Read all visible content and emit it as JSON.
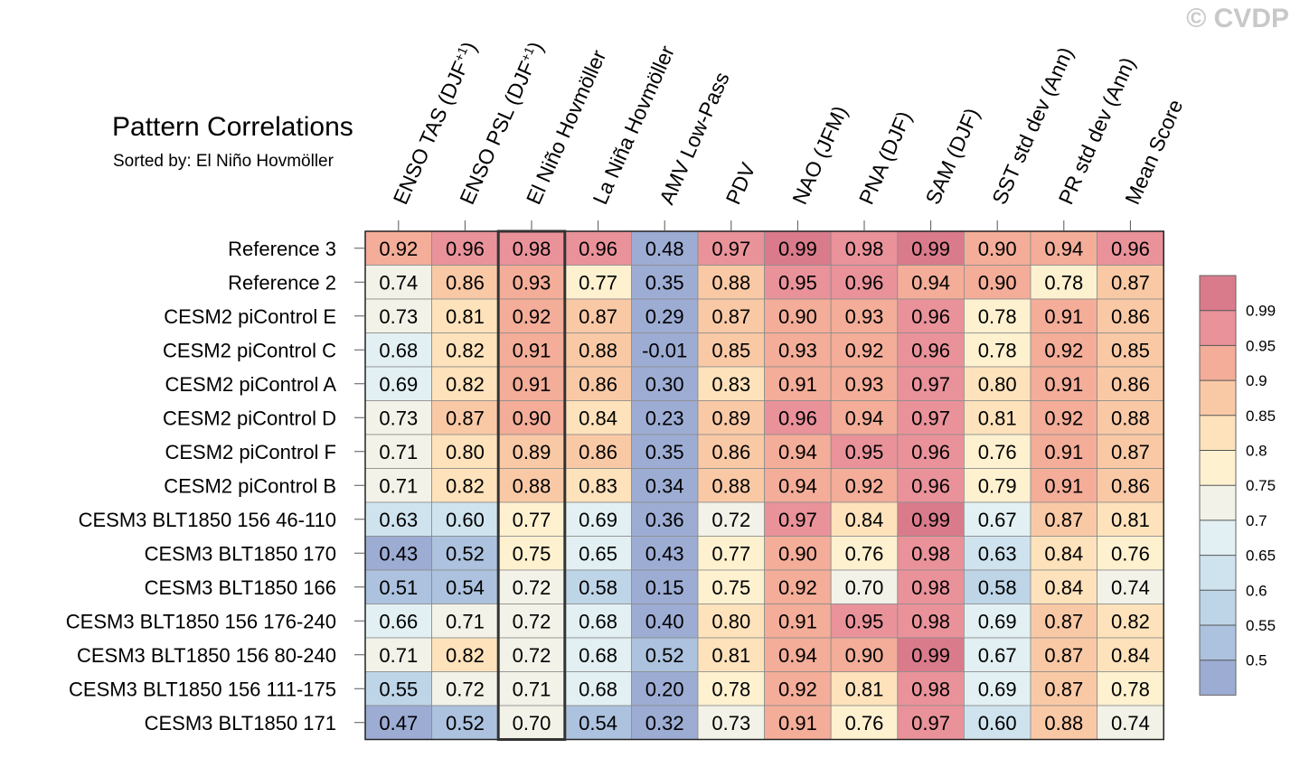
{
  "watermark": "© CVDP",
  "chart_data": {
    "type": "heatmap",
    "title": "Pattern Correlations",
    "subtitle": "Sorted by: El Niño Hovmöller",
    "highlight_column": 2,
    "columns": [
      {
        "text": "ENSO TAS (DJF",
        "sup": "+1",
        "tail": ")"
      },
      {
        "text": "ENSO PSL (DJF",
        "sup": "+1",
        "tail": ")"
      },
      {
        "text": "El Niño Hovmöller",
        "sup": "",
        "tail": ""
      },
      {
        "text": "La Niña Hovmöller",
        "sup": "",
        "tail": ""
      },
      {
        "text": "AMV Low-Pass",
        "sup": "",
        "tail": ""
      },
      {
        "text": "PDV",
        "sup": "",
        "tail": ""
      },
      {
        "text": "NAO (JFM)",
        "sup": "",
        "tail": ""
      },
      {
        "text": "PNA (DJF)",
        "sup": "",
        "tail": ""
      },
      {
        "text": "SAM (DJF)",
        "sup": "",
        "tail": ""
      },
      {
        "text": "SST std dev (Ann)",
        "sup": "",
        "tail": ""
      },
      {
        "text": "PR std dev (Ann)",
        "sup": "",
        "tail": ""
      },
      {
        "text": "Mean Score",
        "sup": "",
        "tail": ""
      }
    ],
    "rows": [
      "Reference 3",
      "Reference 2",
      "CESM2 piControl E",
      "CESM2 piControl C",
      "CESM2 piControl A",
      "CESM2 piControl D",
      "CESM2 piControl F",
      "CESM2 piControl B",
      "CESM3 BLT1850 156 46-110",
      "CESM3 BLT1850 170",
      "CESM3 BLT1850 166",
      "CESM3 BLT1850 156 176-240",
      "CESM3 BLT1850 156 80-240",
      "CESM3 BLT1850 156 111-175",
      "CESM3 BLT1850 171"
    ],
    "values": [
      [
        "0.92",
        "0.96",
        "0.98",
        "0.96",
        "0.48",
        "0.97",
        "0.99",
        "0.98",
        "0.99",
        "0.90",
        "0.94",
        "0.96"
      ],
      [
        "0.74",
        "0.86",
        "0.93",
        "0.77",
        "0.35",
        "0.88",
        "0.95",
        "0.96",
        "0.94",
        "0.90",
        "0.78",
        "0.87"
      ],
      [
        "0.73",
        "0.81",
        "0.92",
        "0.87",
        "0.29",
        "0.87",
        "0.90",
        "0.93",
        "0.96",
        "0.78",
        "0.91",
        "0.86"
      ],
      [
        "0.68",
        "0.82",
        "0.91",
        "0.88",
        "-0.01",
        "0.85",
        "0.93",
        "0.92",
        "0.96",
        "0.78",
        "0.92",
        "0.85"
      ],
      [
        "0.69",
        "0.82",
        "0.91",
        "0.86",
        "0.30",
        "0.83",
        "0.91",
        "0.93",
        "0.97",
        "0.80",
        "0.91",
        "0.86"
      ],
      [
        "0.73",
        "0.87",
        "0.90",
        "0.84",
        "0.23",
        "0.89",
        "0.96",
        "0.94",
        "0.97",
        "0.81",
        "0.92",
        "0.88"
      ],
      [
        "0.71",
        "0.80",
        "0.89",
        "0.86",
        "0.35",
        "0.86",
        "0.94",
        "0.95",
        "0.96",
        "0.76",
        "0.91",
        "0.87"
      ],
      [
        "0.71",
        "0.82",
        "0.88",
        "0.83",
        "0.34",
        "0.88",
        "0.94",
        "0.92",
        "0.96",
        "0.79",
        "0.91",
        "0.86"
      ],
      [
        "0.63",
        "0.60",
        "0.77",
        "0.69",
        "0.36",
        "0.72",
        "0.97",
        "0.84",
        "0.99",
        "0.67",
        "0.87",
        "0.81"
      ],
      [
        "0.43",
        "0.52",
        "0.75",
        "0.65",
        "0.43",
        "0.77",
        "0.90",
        "0.76",
        "0.98",
        "0.63",
        "0.84",
        "0.76"
      ],
      [
        "0.51",
        "0.54",
        "0.72",
        "0.58",
        "0.15",
        "0.75",
        "0.92",
        "0.70",
        "0.98",
        "0.58",
        "0.84",
        "0.74"
      ],
      [
        "0.66",
        "0.71",
        "0.72",
        "0.68",
        "0.40",
        "0.80",
        "0.91",
        "0.95",
        "0.98",
        "0.69",
        "0.87",
        "0.82"
      ],
      [
        "0.71",
        "0.82",
        "0.72",
        "0.68",
        "0.52",
        "0.81",
        "0.94",
        "0.90",
        "0.99",
        "0.67",
        "0.87",
        "0.84"
      ],
      [
        "0.55",
        "0.72",
        "0.71",
        "0.68",
        "0.20",
        "0.78",
        "0.92",
        "0.81",
        "0.98",
        "0.69",
        "0.87",
        "0.78"
      ],
      [
        "0.47",
        "0.52",
        "0.70",
        "0.54",
        "0.32",
        "0.73",
        "0.91",
        "0.76",
        "0.97",
        "0.60",
        "0.88",
        "0.74"
      ]
    ],
    "colorbar": {
      "boundaries": [
        0.5,
        0.55,
        0.6,
        0.65,
        0.7,
        0.75,
        0.8,
        0.85,
        0.9,
        0.95,
        0.99
      ],
      "labels": [
        "0.5",
        "0.55",
        "0.6",
        "0.65",
        "0.7",
        "0.75",
        "0.8",
        "0.85",
        "0.9",
        "0.95",
        "0.99"
      ],
      "colors": [
        "#9dacd3",
        "#acc2de",
        "#bed5e7",
        "#cfe3ee",
        "#e2f0f3",
        "#f2f2e8",
        "#fdf1d0",
        "#fde2bb",
        "#f9c9a6",
        "#f3ad98",
        "#e9929a",
        "#d97b8b"
      ]
    }
  }
}
